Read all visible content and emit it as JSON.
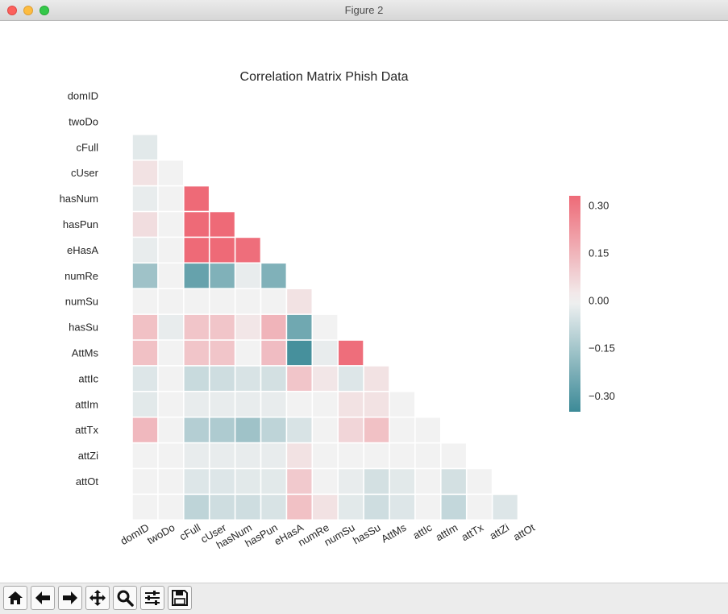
{
  "window": {
    "title": "Figure 2"
  },
  "chart_data": {
    "type": "heatmap",
    "title": "Correlation Matrix Phish Data",
    "row_labels": [
      "domID",
      "twoDo",
      "cFull",
      "cUser",
      "hasNum",
      "hasPun",
      "eHasA",
      "numRe",
      "numSu",
      "hasSu",
      "AttMs",
      "attIc",
      "attIm",
      "attTx",
      "attZi",
      "attOt"
    ],
    "col_labels": [
      "domID",
      "twoDo",
      "cFull",
      "cUser",
      "hasNum",
      "hasPun",
      "eHasA",
      "numRe",
      "numSu",
      "hasSu",
      "AttMs",
      "attIc",
      "attIm",
      "attTx",
      "attZi",
      "attOt"
    ],
    "mask": "lower-triangle (cells on and above the diagonal are hidden)",
    "rows": [
      [],
      [],
      [
        -0.03
      ],
      [
        0.04,
        0.0
      ],
      [
        -0.02,
        0.0,
        0.33
      ],
      [
        0.05,
        0.0,
        0.33,
        0.33
      ],
      [
        -0.02,
        0.0,
        0.33,
        0.33,
        0.32
      ],
      [
        -0.16,
        0.0,
        -0.27,
        -0.22,
        -0.02,
        -0.22
      ],
      [
        0.0,
        0.0,
        0.0,
        0.0,
        0.0,
        0.0,
        0.04
      ],
      [
        0.12,
        -0.02,
        0.11,
        0.11,
        0.03,
        0.15,
        -0.25,
        0.0
      ],
      [
        0.12,
        0.0,
        0.11,
        0.11,
        0.0,
        0.13,
        -0.33,
        -0.02,
        0.32
      ],
      [
        -0.04,
        0.0,
        -0.08,
        -0.07,
        -0.05,
        -0.06,
        0.11,
        0.03,
        -0.04,
        0.04
      ],
      [
        -0.03,
        0.0,
        -0.02,
        -0.02,
        -0.02,
        -0.02,
        0.0,
        0.0,
        0.04,
        0.04,
        0.0
      ],
      [
        0.14,
        0.0,
        -0.12,
        -0.13,
        -0.16,
        -0.1,
        -0.05,
        0.0,
        0.07,
        0.12,
        0.0,
        0.0
      ],
      [
        0.0,
        0.0,
        -0.02,
        -0.02,
        -0.02,
        -0.02,
        0.04,
        0.0,
        0.0,
        0.0,
        0.0,
        0.0,
        0.0
      ],
      [
        0.0,
        0.0,
        -0.04,
        -0.04,
        -0.03,
        -0.03,
        0.1,
        0.0,
        -0.02,
        -0.06,
        -0.03,
        0.0,
        -0.06,
        0.0
      ]
    ],
    "extra_row": [
      0.0,
      0.0,
      -0.1,
      -0.07,
      -0.07,
      -0.05,
      0.12,
      0.04,
      -0.03,
      -0.07,
      -0.04,
      0.0,
      -0.09,
      0.0,
      -0.04
    ],
    "colorbar": {
      "vmin": -0.35,
      "vmax": 0.33,
      "ticks": [
        0.3,
        0.15,
        0.0,
        -0.15,
        -0.3
      ],
      "tick_labels": [
        "0.30",
        "0.15",
        "0.00",
        "−0.15",
        "−0.30"
      ],
      "negative_color": "#3c8a97",
      "center_color": "#f2f2f2",
      "positive_color": "#ee6a77"
    },
    "grid": false,
    "legend": "colorbar at right"
  },
  "toolbar": {
    "buttons": [
      {
        "name": "home-button",
        "icon": "home-icon",
        "tooltip": "Reset original view"
      },
      {
        "name": "back-button",
        "icon": "arrow-left-icon",
        "tooltip": "Back to previous view"
      },
      {
        "name": "forward-button",
        "icon": "arrow-right-icon",
        "tooltip": "Forward to next view"
      },
      {
        "name": "pan-button",
        "icon": "move-icon",
        "tooltip": "Pan axes"
      },
      {
        "name": "zoom-button",
        "icon": "magnifier-icon",
        "tooltip": "Zoom to rectangle"
      },
      {
        "name": "configure-button",
        "icon": "sliders-icon",
        "tooltip": "Configure subplots"
      },
      {
        "name": "save-button",
        "icon": "floppy-icon",
        "tooltip": "Save the figure"
      }
    ]
  }
}
